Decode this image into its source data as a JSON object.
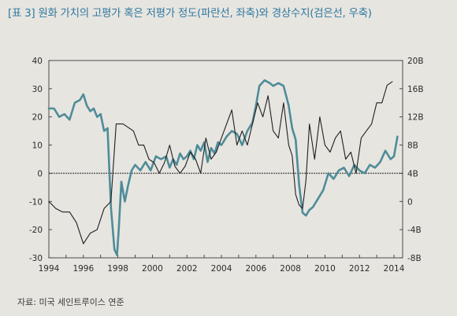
{
  "title": "[표 3] 원화 가치의 고평가 혹은 저평가 정도(파란선, 좌축)와 경상수지(검은선, 우축)",
  "source": "자료: 미국 세인트루이스 연준",
  "chart_data": {
    "type": "line",
    "title": "[표 3] 원화 가치의 고평가 혹은 저평가 정도(파란선, 좌축)와 경상수지(검은선, 우축)",
    "xlim": [
      1994,
      2014.5
    ],
    "x_ticks": [
      "1994",
      "1996",
      "1998",
      "2000",
      "2002",
      "2004",
      "2006",
      "2008",
      "2010",
      "2012",
      "2014"
    ],
    "y_left": {
      "ylim": [
        -30,
        40
      ],
      "ticks": [
        "40",
        "30",
        "20",
        "10",
        "0",
        "-10",
        "-20",
        "-30"
      ]
    },
    "y_right": {
      "ylim": [
        -8,
        20
      ],
      "ticks": [
        "20B",
        "16B",
        "12B",
        "8B",
        "4B",
        "0",
        "-4B",
        "-8B"
      ]
    },
    "grid": false,
    "zero_line": true,
    "series": [
      {
        "color": "#4f8c98",
        "axis": "left",
        "x": [
          1994.0,
          1994.3,
          1994.6,
          1994.9,
          1995.2,
          1995.5,
          1995.8,
          1996.0,
          1996.2,
          1996.4,
          1996.6,
          1996.8,
          1997.0,
          1997.2,
          1997.4,
          1997.6,
          1997.8,
          1997.95,
          1998.05,
          1998.2,
          1998.4,
          1998.6,
          1998.8,
          1999.0,
          1999.3,
          1999.6,
          1999.9,
          2000.2,
          2000.5,
          2000.8,
          2001.0,
          2001.2,
          2001.4,
          2001.6,
          2001.8,
          2002.0,
          2002.2,
          2002.4,
          2002.6,
          2002.8,
          2003.0,
          2003.2,
          2003.4,
          2003.6,
          2003.8,
          2004.0,
          2004.3,
          2004.6,
          2004.9,
          2005.2,
          2005.5,
          2005.8,
          2006.0,
          2006.2,
          2006.5,
          2006.8,
          2007.0,
          2007.3,
          2007.6,
          2007.9,
          2008.1,
          2008.3,
          2008.5,
          2008.7,
          2008.9,
          2009.1,
          2009.3,
          2009.6,
          2009.9,
          2010.2,
          2010.5,
          2010.8,
          2011.1,
          2011.4,
          2011.7,
          2012.0,
          2012.3,
          2012.6,
          2012.9,
          2013.2,
          2013.5,
          2013.8,
          2014.0,
          2014.2
        ],
        "values": [
          23,
          23,
          20,
          21,
          19,
          25,
          26,
          28,
          24,
          22,
          23,
          20,
          21,
          15,
          16,
          -12,
          -27,
          -29,
          -20,
          -3,
          -10,
          -4,
          1,
          3,
          1,
          4,
          1,
          6,
          5,
          6,
          2,
          5,
          3,
          7,
          5,
          6,
          8,
          5,
          10,
          8,
          11,
          4,
          9,
          7,
          11,
          10,
          13,
          15,
          14,
          10,
          15,
          18,
          24,
          31,
          33,
          32,
          31,
          32,
          31,
          24,
          16,
          12,
          -4,
          -14,
          -15,
          -13,
          -12,
          -9,
          -6,
          0,
          -2,
          1,
          2,
          -1,
          3,
          1,
          0,
          3,
          2,
          4,
          8,
          5,
          6,
          13
        ]
      },
      {
        "color": "#1f1f1f",
        "axis": "right",
        "x": [
          1994.0,
          1994.4,
          1994.8,
          1995.2,
          1995.6,
          1996.0,
          1996.4,
          1996.8,
          1997.2,
          1997.6,
          1997.9,
          1998.0,
          1998.3,
          1998.6,
          1998.9,
          1999.2,
          1999.5,
          1999.8,
          2000.1,
          2000.4,
          2000.7,
          2001.0,
          2001.3,
          2001.6,
          2001.9,
          2002.2,
          2002.5,
          2002.8,
          2003.1,
          2003.4,
          2003.7,
          2004.0,
          2004.3,
          2004.6,
          2004.9,
          2005.2,
          2005.5,
          2005.8,
          2006.1,
          2006.4,
          2006.7,
          2007.0,
          2007.3,
          2007.6,
          2007.9,
          2008.1,
          2008.3,
          2008.5,
          2008.7,
          2008.9,
          2009.1,
          2009.4,
          2009.7,
          2010.0,
          2010.3,
          2010.6,
          2010.9,
          2011.2,
          2011.5,
          2011.8,
          2012.1,
          2012.4,
          2012.7,
          2013.0,
          2013.3,
          2013.6,
          2013.9
        ],
        "values": [
          0,
          -1,
          -1.5,
          -1.5,
          -3,
          -6,
          -4.5,
          -4,
          -1,
          0,
          11,
          11,
          11,
          10.5,
          10,
          8,
          8,
          6,
          5.5,
          4,
          5.5,
          8,
          5,
          4,
          5,
          7,
          6,
          4,
          9,
          6,
          7,
          9,
          11,
          13,
          8,
          10,
          8,
          11,
          14,
          12,
          15,
          10,
          9,
          14,
          8,
          6.5,
          1,
          -0.5,
          -1,
          3,
          11,
          6,
          12,
          8,
          7,
          9,
          10,
          6,
          7,
          4,
          9,
          10,
          11,
          14,
          14,
          16.5,
          17
        ]
      }
    ]
  }
}
